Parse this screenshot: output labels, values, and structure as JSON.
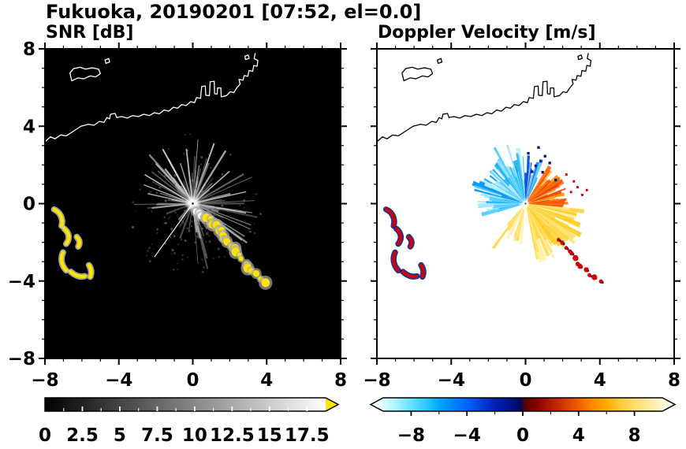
{
  "figure": {
    "title": "Fukuoka, 20190201 [07:52, el=0.0]",
    "bg": "#ffffff"
  },
  "panels": [
    {
      "id": "snr",
      "label": "SNR [dB]",
      "bg": "#000000",
      "coast": "#ffffff"
    },
    {
      "id": "doppler",
      "label": "Doppler Velocity [m/s]",
      "bg": "#ffffff",
      "coast": "#000000"
    }
  ],
  "axes": {
    "xlim": [
      -8,
      8
    ],
    "ylim": [
      -8,
      8
    ],
    "major_ticks": [
      -8,
      -4,
      0,
      4,
      8
    ],
    "minor_step": 1,
    "x_tick_labels": [
      "−8",
      "−4",
      "0",
      "4",
      "8"
    ],
    "y_tick_labels": [
      "−8",
      "−4",
      "0",
      "4",
      "8"
    ]
  },
  "colorbars": {
    "snr": {
      "vmin": 0,
      "vmax": 18.75,
      "tick_values": [
        0,
        2.5,
        5,
        7.5,
        10,
        12.5,
        15,
        17.5
      ],
      "tick_labels": [
        "0",
        "2.5",
        "5",
        "7.5",
        "10",
        "12.5",
        "15",
        "17.5"
      ],
      "minor_step": 1.25,
      "gradient": [
        [
          0,
          "#000000"
        ],
        [
          1,
          "#ffffff"
        ]
      ],
      "over_color": "#ffe800"
    },
    "doppler": {
      "vmin": -10,
      "vmax": 10,
      "tick_values": [
        -8,
        -4,
        0,
        4,
        8
      ],
      "tick_labels": [
        "−8",
        "−4",
        "0",
        "4",
        "8"
      ],
      "minor_step": 2,
      "gradient": [
        [
          0,
          "#d9ffff"
        ],
        [
          0.05,
          "#a5f2ff"
        ],
        [
          0.1,
          "#63e2ff"
        ],
        [
          0.15,
          "#2fccff"
        ],
        [
          0.2,
          "#00aaff"
        ],
        [
          0.25,
          "#0085ff"
        ],
        [
          0.3,
          "#0063ff"
        ],
        [
          0.35,
          "#0041d9"
        ],
        [
          0.4,
          "#0022b8"
        ],
        [
          0.45,
          "#001191"
        ],
        [
          0.49,
          "#000a60"
        ],
        [
          0.51,
          "#570000"
        ],
        [
          0.55,
          "#8b0000"
        ],
        [
          0.6,
          "#b21b00"
        ],
        [
          0.65,
          "#d53a00"
        ],
        [
          0.7,
          "#ef6000"
        ],
        [
          0.75,
          "#ff8a00"
        ],
        [
          0.8,
          "#ffac00"
        ],
        [
          0.85,
          "#ffc838"
        ],
        [
          0.9,
          "#ffdc6b"
        ],
        [
          0.95,
          "#ffec9e"
        ],
        [
          1,
          "#fff8cf"
        ]
      ],
      "under_color": "#eaffff",
      "over_color": "#ffffe3"
    }
  },
  "geometry": {
    "seed": 20190201,
    "coastline": [
      "M -8 3.2 L -7.7 3.45 L -7.45 3.35 L -7.15 3.55 L -6.85 3.5 L -6.45 3.75 L -6.05 4 L -5.65 4.1 L -5.35 4.05 L -5.05 4.25 L -4.8 4.2 L -4.65 4.45 L -4.5 4.38 L -4.45 4.62 L -4.2 4.66 L -4.12 4.45 L -3.85 4.5 L -3.55 4.42 L -3.25 4.55 L -2.95 4.5 L -2.65 4.62 L -2.35 4.55 L -2.08 4.7 L -1.82 4.64 L -1.55 4.84 L -1.3 4.78 L -1.05 4.98 L -0.82 4.93 L -0.6 5.12 L -0.36 5.07 L -0.12 5.27 L 0.1 5.22 L 0.2 5.48 L 0.42 5.44 L 0.48 6.05 L 0.68 6.08 L 0.7 5.6 L 0.9 5.58 L 0.94 6.3 L 1.16 6.32 L 1.18 5.68 L 1.32 5.66 L 1.34 5.98 L 1.52 5.98 L 1.54 5.52 L 1.82 5.58 L 2.02 5.78 L 2.22 5.74 L 2.38 5.98 L 2.56 6.18 L 2.5 6.42 L 2.72 6.38 L 2.78 6.62 L 2.98 6.58 L 3.04 6.88 L 3.24 6.84 L 3.3 7.14 L 3.48 7.1 L 3.52 7.4 L 3.32 7.5 L 3.38 7.78",
      "M -6.55 6.35 L -6.2 6.5 L -5.9 6.45 L -5.55 6.6 L -5.25 6.55 L -5.0 6.72 L -5.1 6.95 L -5.45 7.02 L -5.8 6.95 L -6.1 7.05 L -6.45 6.98 L -6.65 6.75 Z",
      "M -4.7 7.25 L -4.5 7.32 L -4.55 7.5 L -4.75 7.42 Z",
      "M 2.85 7.45 L 3.05 7.5 L 3.0 7.68 L 2.82 7.62 Z"
    ],
    "snr": {
      "ray_sectors": [
        [
          -85,
          205,
          80
        ],
        [
          205,
          268,
          5
        ],
        [
          272,
          358,
          10
        ]
      ],
      "ray_len": [
        1.1,
        3.6
      ],
      "ray_gray": [
        80,
        215
      ],
      "speckle": 150,
      "special_rays": [
        [
          233,
          3.45,
          "#ffffff",
          1.1,
          1
        ],
        [
          120,
          3.25,
          "#d9d9d9",
          1.8,
          0.95
        ],
        [
          97,
          2.85,
          "#c9c9c9",
          1.8,
          0.9
        ],
        [
          150,
          3.0,
          "#cfcfcf",
          1.6,
          0.9
        ],
        [
          40,
          2.6,
          "#cfcfcf",
          1.5,
          0.9
        ],
        [
          12,
          2.95,
          "#c2c2c2",
          1.4,
          0.9
        ],
        [
          168,
          2.5,
          "#c6c6c6",
          1.5,
          0.85
        ]
      ],
      "arc": {
        "p0": [
          0.2,
          -0.5
        ],
        "c1": [
          1.6,
          -1.0
        ],
        "c2": [
          1.7,
          -2.3
        ],
        "p1": [
          4.0,
          -4.1
        ],
        "count": 26
      },
      "arc_fill": "#ffe400",
      "arc_halo": "#aaaaaa",
      "patches": [
        "M -7.5 -0.3 C -7.15 -0.45 -7.0 -0.8 -7.1 -1.15",
        "M -6.95 -1.3 C -6.7 -1.5 -6.62 -1.8 -6.85 -2.08",
        "M -6.28 -1.72 C -6.12 -1.88 -6.08 -2.05 -6.2 -2.22",
        "M -7.02 -2.52 C -7.18 -2.85 -7.1 -3.2 -6.85 -3.45",
        "M -6.6 -3.52 C -6.38 -3.72 -6.08 -3.82 -5.85 -3.75",
        "M -5.62 -3.18 C -5.5 -3.35 -5.45 -3.55 -5.55 -3.78"
      ],
      "patch_fill": "#ffe400",
      "patch_halo": "#c8c8c8"
    },
    "doppler": {
      "fans": [
        {
          "name": "fan-negative-nw",
          "a": [
            95,
            175
          ],
          "r": [
            1.0,
            3.05
          ],
          "n": 58,
          "colors": [
            "#9fe6ff",
            "#55ccff",
            "#17b2ff",
            "#0090ee",
            "#66d9ff",
            "#c2f0ff",
            "#2ab5f5"
          ]
        },
        {
          "name": "fan-negative-w",
          "a": [
            172,
            196
          ],
          "r": [
            1.1,
            2.7
          ],
          "n": 16,
          "colors": [
            "#55ccff",
            "#17b2ff",
            "#9fe6ff"
          ]
        },
        {
          "name": "fan-negative-nne",
          "a": [
            62,
            95
          ],
          "r": [
            1.3,
            2.5
          ],
          "n": 14,
          "colors": [
            "#0046d4",
            "#0a6ae0",
            "#2e9bff",
            "#55ccff"
          ]
        },
        {
          "name": "fan-positive-ne",
          "a": [
            -6,
            58
          ],
          "r": [
            0.9,
            2.35
          ],
          "n": 46,
          "colors": [
            "#ff9100",
            "#ff6a00",
            "#f95300",
            "#ffb347",
            "#e23b00",
            "#ff7f1a"
          ]
        },
        {
          "name": "fan-positive-se",
          "a": [
            -78,
            -6
          ],
          "r": [
            1.3,
            3.4
          ],
          "n": 72,
          "colors": [
            "#ffd84d",
            "#ffe27a",
            "#ffcd26",
            "#fff0a8",
            "#ffdf5e",
            "#ffd23a"
          ]
        },
        {
          "name": "fan-positive-sw",
          "a": [
            -132,
            -96
          ],
          "r": [
            0.8,
            2.2
          ],
          "n": 12,
          "colors": [
            "#ffe27a",
            "#ffd84d",
            "#fff0a8"
          ]
        }
      ],
      "special_fans": [
        [
          233,
          2.9,
          1.5,
          "#ffd840"
        ],
        [
          120,
          3.35,
          1.2,
          "#55ccff"
        ],
        [
          108,
          3.2,
          1.0,
          "#9fe6ff"
        ]
      ],
      "navy_specks": [
        [
          0.55,
          1.95
        ],
        [
          0.82,
          2.2
        ],
        [
          1.05,
          2.45
        ],
        [
          0.35,
          1.65
        ],
        [
          1.3,
          2.1
        ],
        [
          0.92,
          1.62
        ],
        [
          1.62,
          1.22
        ],
        [
          0.15,
          2.6
        ],
        [
          0.7,
          2.9
        ]
      ],
      "red_specks": [
        [
          2.45,
          0.6
        ],
        [
          2.8,
          0.85
        ],
        [
          3.05,
          0.45
        ],
        [
          2.6,
          1.15
        ],
        [
          3.3,
          0.7
        ],
        [
          2.2,
          1.5
        ]
      ],
      "arc_fill": "#cf0000",
      "arc_halo": "#001f8a",
      "patch_fill": "#d40000",
      "patch_halo": "#002090"
    }
  },
  "chart_data": [
    {
      "type": "heatmap",
      "panel": "left",
      "title": "SNR [dB]",
      "xlim": [
        -8,
        8
      ],
      "ylim": [
        -8,
        8
      ],
      "x_ticks": [
        -8,
        -4,
        0,
        4,
        8
      ],
      "y_ticks": [
        -8,
        -4,
        0,
        4,
        8
      ],
      "colorbar": {
        "label": "SNR [dB]",
        "range": [
          0,
          17.5
        ],
        "ticks": [
          0,
          2.5,
          5,
          7.5,
          10,
          12.5,
          15,
          17.5
        ],
        "colormap": "grayscale black→white with yellow overflow arrow"
      },
      "features": [
        "gray radial SNR spokes centered on radar at (0,0), max range ≈ 3.5",
        "saturated (yellow, >17.5 dB) ground-clutter arc from (0.2,−0.6) to (4.0,−4.1)",
        "yellow clutter patches near (−7.4,−0.3)…(−5.6,−2.2) and (−7.0,−2.5)…(−5.6,−3.8)",
        "white coastline with harbor piers across y ≈ 3.2…7.8; dark (no-echo) wedge to the SW"
      ]
    },
    {
      "type": "heatmap",
      "panel": "right",
      "title": "Doppler Velocity [m/s]",
      "xlim": [
        -8,
        8
      ],
      "ylim": [
        -8,
        8
      ],
      "x_ticks": [
        -8,
        -4,
        0,
        4,
        8
      ],
      "y_ticks": [
        -8,
        -4,
        0,
        4,
        8
      ],
      "colorbar": {
        "label": "Doppler Velocity [m/s]",
        "range": [
          -10,
          10
        ],
        "ticks": [
          -8,
          -4,
          0,
          4,
          8
        ],
        "colormap": "pale cyan→blue→navy (negative) | dark red→orange→yellow (positive), arrows both ends"
      },
      "features": [
        "negative velocities (cyan/blue, −2…−9 m/s) in fan NW and W of radar at (0,0)",
        "scattered dark-blue bins N–NNE of radar",
        "positive velocities (orange/red, +3…+8 m/s) in fan NE–E of radar",
        "positive velocities (yellow, +5…+9 m/s) in broad fan SE of radar",
        "red/navy clutter echoes near x ≈ −7 and along arc SE of origin",
        "black coastline identical to left panel"
      ]
    }
  ]
}
